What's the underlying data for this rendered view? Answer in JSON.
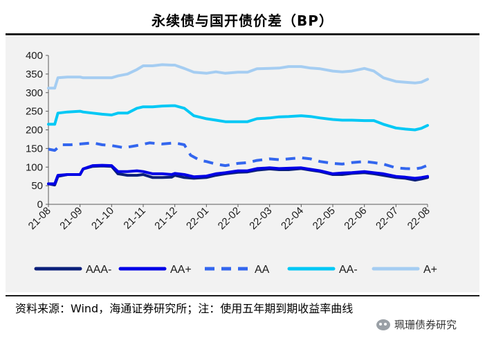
{
  "title": "永续债与国开债价差（BP）",
  "source": "资料来源：Wind，海通证券研究所；注：使用五年期到期收益率曲线",
  "watermark": "珮珊债券研究",
  "chart_data": {
    "type": "line",
    "title": "永续债与国开债价差（BP）",
    "xlabel": "",
    "ylabel": "",
    "ylim": [
      0,
      400
    ],
    "yticks": [
      0,
      50,
      100,
      150,
      200,
      250,
      300,
      350,
      400
    ],
    "x": [
      "21-08",
      "21-09",
      "21-10",
      "21-11",
      "21-12",
      "22-01",
      "22-02",
      "22-03",
      "22-04",
      "22-05",
      "22-06",
      "22-07",
      "22-08"
    ],
    "legend_position": "bottom",
    "grid": false,
    "series": [
      {
        "name": "AAA-",
        "color": "#0a1f7a",
        "dash": "solid",
        "points": [
          [
            0,
            55
          ],
          [
            0.2,
            52
          ],
          [
            0.3,
            75
          ],
          [
            0.6,
            80
          ],
          [
            1.0,
            80
          ],
          [
            1.1,
            95
          ],
          [
            1.4,
            102
          ],
          [
            1.7,
            103
          ],
          [
            2.0,
            102
          ],
          [
            2.2,
            82
          ],
          [
            2.5,
            78
          ],
          [
            2.8,
            78
          ],
          [
            3.0,
            80
          ],
          [
            3.3,
            72
          ],
          [
            3.6,
            72
          ],
          [
            3.9,
            73
          ],
          [
            4.0,
            78
          ],
          [
            4.3,
            72
          ],
          [
            4.6,
            70
          ],
          [
            5.0,
            72
          ],
          [
            5.3,
            78
          ],
          [
            5.6,
            82
          ],
          [
            6.0,
            86
          ],
          [
            6.3,
            87
          ],
          [
            6.6,
            92
          ],
          [
            7.0,
            95
          ],
          [
            7.3,
            93
          ],
          [
            7.6,
            93
          ],
          [
            8.0,
            96
          ],
          [
            8.3,
            92
          ],
          [
            8.6,
            88
          ],
          [
            9.0,
            80
          ],
          [
            9.3,
            80
          ],
          [
            9.6,
            83
          ],
          [
            10.0,
            85
          ],
          [
            10.3,
            82
          ],
          [
            10.6,
            78
          ],
          [
            11.0,
            72
          ],
          [
            11.3,
            70
          ],
          [
            11.6,
            65
          ],
          [
            11.8,
            68
          ],
          [
            12.0,
            72
          ]
        ]
      },
      {
        "name": "AA+",
        "color": "#0000e6",
        "dash": "solid",
        "points": [
          [
            0,
            55
          ],
          [
            0.2,
            55
          ],
          [
            0.3,
            78
          ],
          [
            0.6,
            80
          ],
          [
            1.0,
            80
          ],
          [
            1.1,
            95
          ],
          [
            1.4,
            104
          ],
          [
            1.7,
            105
          ],
          [
            2.0,
            104
          ],
          [
            2.2,
            88
          ],
          [
            2.5,
            88
          ],
          [
            2.8,
            90
          ],
          [
            3.0,
            88
          ],
          [
            3.3,
            82
          ],
          [
            3.6,
            82
          ],
          [
            3.9,
            80
          ],
          [
            4.0,
            83
          ],
          [
            4.3,
            80
          ],
          [
            4.6,
            74
          ],
          [
            5.0,
            76
          ],
          [
            5.3,
            82
          ],
          [
            5.6,
            85
          ],
          [
            6.0,
            90
          ],
          [
            6.3,
            90
          ],
          [
            6.6,
            96
          ],
          [
            7.0,
            98
          ],
          [
            7.3,
            96
          ],
          [
            7.6,
            97
          ],
          [
            8.0,
            98
          ],
          [
            8.3,
            94
          ],
          [
            8.6,
            90
          ],
          [
            9.0,
            82
          ],
          [
            9.3,
            84
          ],
          [
            9.6,
            85
          ],
          [
            10.0,
            88
          ],
          [
            10.3,
            85
          ],
          [
            10.6,
            82
          ],
          [
            11.0,
            75
          ],
          [
            11.3,
            73
          ],
          [
            11.6,
            70
          ],
          [
            11.8,
            72
          ],
          [
            12.0,
            75
          ]
        ]
      },
      {
        "name": "AA",
        "color": "#3366ee",
        "dash": "dashed",
        "points": [
          [
            0,
            148
          ],
          [
            0.2,
            145
          ],
          [
            0.4,
            160
          ],
          [
            0.7,
            160
          ],
          [
            1.0,
            162
          ],
          [
            1.4,
            165
          ],
          [
            1.7,
            160
          ],
          [
            2.0,
            158
          ],
          [
            2.4,
            152
          ],
          [
            2.8,
            158
          ],
          [
            3.2,
            165
          ],
          [
            3.6,
            162
          ],
          [
            4.0,
            165
          ],
          [
            4.3,
            160
          ],
          [
            4.5,
            132
          ],
          [
            4.8,
            118
          ],
          [
            5.0,
            115
          ],
          [
            5.3,
            108
          ],
          [
            5.6,
            104
          ],
          [
            6.0,
            110
          ],
          [
            6.3,
            112
          ],
          [
            6.6,
            118
          ],
          [
            7.0,
            122
          ],
          [
            7.3,
            120
          ],
          [
            7.6,
            122
          ],
          [
            8.0,
            125
          ],
          [
            8.3,
            122
          ],
          [
            8.6,
            115
          ],
          [
            9.0,
            110
          ],
          [
            9.3,
            108
          ],
          [
            9.6,
            112
          ],
          [
            10.0,
            115
          ],
          [
            10.3,
            112
          ],
          [
            10.6,
            108
          ],
          [
            11.0,
            98
          ],
          [
            11.3,
            96
          ],
          [
            11.6,
            95
          ],
          [
            11.8,
            98
          ],
          [
            12.0,
            105
          ]
        ]
      },
      {
        "name": "AA-",
        "color": "#00c8f5",
        "dash": "solid",
        "points": [
          [
            0,
            215
          ],
          [
            0.2,
            215
          ],
          [
            0.3,
            245
          ],
          [
            0.6,
            248
          ],
          [
            1.0,
            250
          ],
          [
            1.1,
            248
          ],
          [
            1.4,
            245
          ],
          [
            1.7,
            242
          ],
          [
            2.0,
            240
          ],
          [
            2.2,
            245
          ],
          [
            2.5,
            245
          ],
          [
            2.8,
            258
          ],
          [
            3.0,
            262
          ],
          [
            3.3,
            262
          ],
          [
            3.6,
            264
          ],
          [
            3.9,
            265
          ],
          [
            4.0,
            265
          ],
          [
            4.3,
            258
          ],
          [
            4.6,
            238
          ],
          [
            5.0,
            230
          ],
          [
            5.3,
            226
          ],
          [
            5.6,
            222
          ],
          [
            6.0,
            222
          ],
          [
            6.3,
            222
          ],
          [
            6.6,
            230
          ],
          [
            7.0,
            232
          ],
          [
            7.3,
            235
          ],
          [
            7.6,
            236
          ],
          [
            8.0,
            238
          ],
          [
            8.3,
            236
          ],
          [
            8.6,
            232
          ],
          [
            9.0,
            228
          ],
          [
            9.3,
            226
          ],
          [
            9.6,
            226
          ],
          [
            10.0,
            225
          ],
          [
            10.3,
            225
          ],
          [
            10.6,
            215
          ],
          [
            11.0,
            205
          ],
          [
            11.3,
            202
          ],
          [
            11.6,
            200
          ],
          [
            11.8,
            204
          ],
          [
            12.0,
            212
          ]
        ]
      },
      {
        "name": "A+",
        "color": "#a5cdf2",
        "dash": "solid",
        "points": [
          [
            0,
            312
          ],
          [
            0.2,
            312
          ],
          [
            0.3,
            340
          ],
          [
            0.6,
            342
          ],
          [
            1.0,
            342
          ],
          [
            1.1,
            340
          ],
          [
            1.4,
            340
          ],
          [
            1.7,
            340
          ],
          [
            2.0,
            340
          ],
          [
            2.2,
            345
          ],
          [
            2.5,
            350
          ],
          [
            2.8,
            362
          ],
          [
            3.0,
            372
          ],
          [
            3.3,
            372
          ],
          [
            3.6,
            375
          ],
          [
            3.9,
            374
          ],
          [
            4.0,
            374
          ],
          [
            4.3,
            365
          ],
          [
            4.6,
            355
          ],
          [
            5.0,
            352
          ],
          [
            5.3,
            356
          ],
          [
            5.6,
            352
          ],
          [
            6.0,
            355
          ],
          [
            6.3,
            355
          ],
          [
            6.6,
            364
          ],
          [
            7.0,
            365
          ],
          [
            7.3,
            366
          ],
          [
            7.6,
            370
          ],
          [
            8.0,
            370
          ],
          [
            8.3,
            366
          ],
          [
            8.6,
            364
          ],
          [
            9.0,
            358
          ],
          [
            9.3,
            356
          ],
          [
            9.6,
            358
          ],
          [
            10.0,
            365
          ],
          [
            10.3,
            358
          ],
          [
            10.6,
            340
          ],
          [
            11.0,
            330
          ],
          [
            11.3,
            328
          ],
          [
            11.6,
            326
          ],
          [
            11.8,
            328
          ],
          [
            12.0,
            336
          ]
        ]
      }
    ]
  }
}
